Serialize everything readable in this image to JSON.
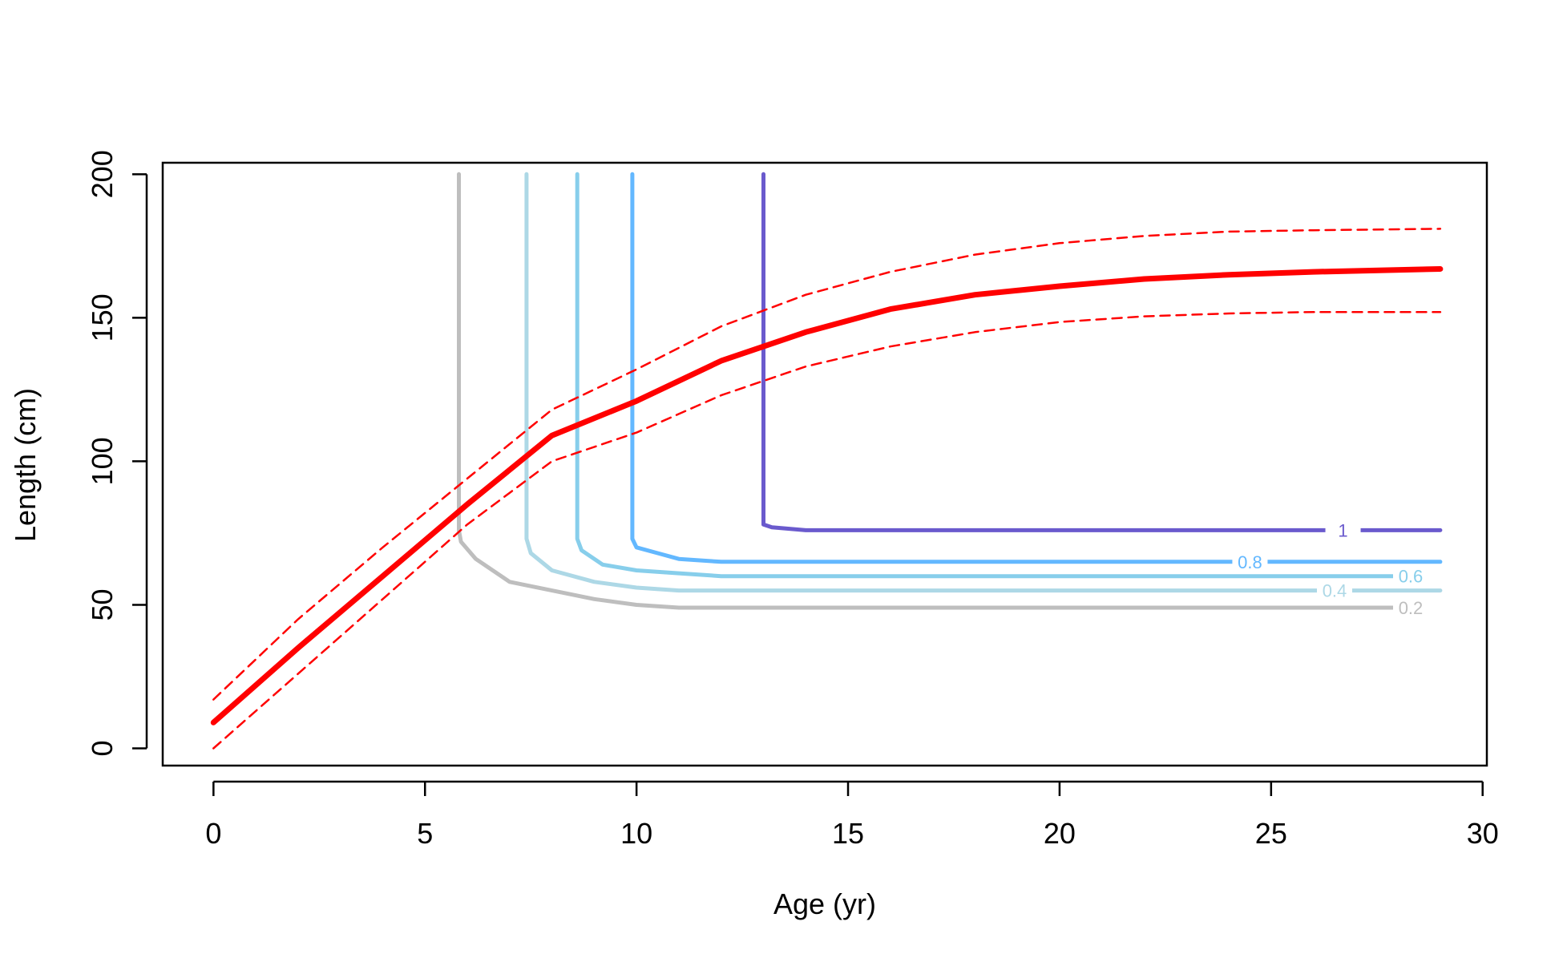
{
  "chart_data": {
    "type": "line",
    "title": "",
    "xlabel": "Age (yr)",
    "ylabel": "Length (cm)",
    "xlim": [
      -1.2,
      30.1
    ],
    "ylim": [
      -6,
      204
    ],
    "xticks": [
      0,
      5,
      10,
      15,
      20,
      25,
      30
    ],
    "yticks": [
      0,
      50,
      100,
      150,
      200
    ],
    "grid": false,
    "legend": "none",
    "series": [
      {
        "color": "#ff0000",
        "style": "solid",
        "x": [
          0,
          2,
          4,
          6,
          8,
          10,
          12,
          14,
          16,
          18,
          20,
          22,
          24,
          26,
          29
        ],
        "y": [
          9,
          35,
          60,
          85,
          109,
          121,
          135,
          145,
          153,
          158,
          161,
          163.5,
          165,
          166,
          167
        ]
      },
      {
        "color": "#ff0000",
        "style": "dashed",
        "x": [
          0,
          2,
          4,
          6,
          8,
          10,
          12,
          14,
          16,
          18,
          20,
          22,
          24,
          26,
          29
        ],
        "y": [
          17,
          45,
          70,
          94,
          118,
          132,
          147,
          158,
          166,
          172,
          176,
          178.5,
          180,
          180.5,
          181
        ]
      },
      {
        "color": "#ff0000",
        "style": "dashed",
        "x": [
          0,
          2,
          4,
          6,
          8,
          10,
          12,
          14,
          16,
          18,
          20,
          22,
          24,
          26,
          29
        ],
        "y": [
          0,
          26,
          52,
          78,
          100,
          110,
          123,
          133,
          140,
          145,
          148.5,
          150.5,
          151.5,
          152,
          152
        ]
      }
    ],
    "contours": [
      {
        "level": "0.2",
        "color": "#bebebe",
        "x": [
          5.8,
          5.8,
          5.85,
          6.2,
          7,
          8,
          9,
          10,
          11,
          12,
          28
        ],
        "y": [
          200,
          76,
          72,
          66,
          58,
          55,
          52,
          50,
          49,
          49,
          49
        ],
        "label_at": [
          28.3,
          49
        ]
      },
      {
        "level": "0.4",
        "color": "#add8e6",
        "x": [
          7.4,
          7.4,
          7.5,
          8,
          9,
          10,
          11,
          12,
          29
        ],
        "y": [
          200,
          73,
          68,
          62,
          58,
          56,
          55,
          55,
          55
        ],
        "label_at": [
          26.5,
          55
        ]
      },
      {
        "level": "0.6",
        "color": "#87ceeb",
        "x": [
          8.6,
          8.6,
          8.7,
          9.2,
          10,
          11,
          12,
          28
        ],
        "y": [
          200,
          73,
          69,
          64,
          62,
          61,
          60,
          60
        ],
        "label_at": [
          28.3,
          60
        ]
      },
      {
        "level": "0.8",
        "color": "#63b8ff",
        "x": [
          9.9,
          9.9,
          10,
          10.5,
          11,
          12,
          29
        ],
        "y": [
          200,
          73,
          70,
          68,
          66,
          65,
          65
        ],
        "label_at": [
          24.5,
          65
        ]
      },
      {
        "level": "1",
        "color": "#6a5acd",
        "x": [
          13,
          13,
          13.2,
          14,
          29
        ],
        "y": [
          200,
          78,
          77,
          76,
          76
        ],
        "label_at": [
          26.7,
          76
        ]
      }
    ]
  }
}
